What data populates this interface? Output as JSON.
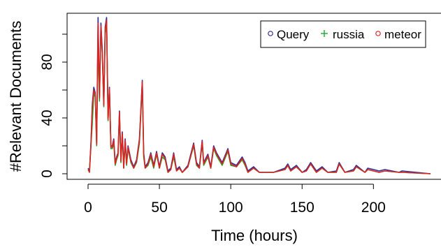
{
  "chart_data": {
    "type": "line",
    "title": "",
    "xlabel": "Time (hours)",
    "ylabel": "#Relevant Documents",
    "xlim": [
      0,
      240
    ],
    "ylim": [
      0,
      115
    ],
    "xticks": [
      0,
      50,
      100,
      150,
      200
    ],
    "yticks": [
      0,
      40,
      80
    ],
    "xtick_labels": [
      "0",
      "50",
      "100",
      "150",
      "200"
    ],
    "ytick_labels": [
      "0",
      "40",
      "80"
    ],
    "grid": false,
    "legend_position": "top-right",
    "legend": [
      "Query",
      "russia",
      "meteor"
    ],
    "series": [
      {
        "name": "Query",
        "color": "#2d2d9a",
        "marker": "circle",
        "x": [
          0,
          1,
          2,
          3,
          4,
          5,
          6,
          7,
          8,
          9,
          10,
          11,
          12,
          13,
          14,
          15,
          16,
          17,
          18,
          19,
          20,
          21,
          22,
          23,
          24,
          25,
          26,
          27,
          28,
          30,
          32,
          34,
          36,
          38,
          39,
          40,
          42,
          44,
          46,
          48,
          50,
          52,
          54,
          56,
          58,
          60,
          62,
          64,
          66,
          70,
          74,
          76,
          78,
          80,
          81,
          82,
          84,
          86,
          88,
          90,
          94,
          98,
          100,
          104,
          108,
          110,
          112,
          116,
          120,
          130,
          138,
          140,
          142,
          146,
          150,
          153,
          156,
          160,
          164,
          168,
          174,
          176,
          180,
          186,
          188,
          194,
          196,
          204,
          208,
          218,
          220,
          240
        ],
        "values": [
          4,
          2,
          22,
          50,
          62,
          58,
          22,
          112,
          55,
          108,
          88,
          50,
          105,
          112,
          40,
          62,
          20,
          20,
          25,
          8,
          12,
          15,
          45,
          10,
          30,
          5,
          25,
          8,
          20,
          10,
          5,
          10,
          25,
          67,
          15,
          5,
          8,
          15,
          6,
          16,
          5,
          15,
          12,
          2,
          4,
          15,
          3,
          5,
          1,
          6,
          22,
          8,
          5,
          24,
          8,
          10,
          14,
          5,
          20,
          15,
          8,
          18,
          8,
          6,
          12,
          8,
          2,
          5,
          1,
          1,
          4,
          7,
          3,
          6,
          1,
          3,
          8,
          2,
          5,
          1,
          2,
          8,
          1,
          3,
          6,
          1,
          4,
          2,
          3,
          1,
          2,
          0
        ]
      },
      {
        "name": "russia",
        "color": "#22aa22",
        "marker": "plus",
        "x": [
          0,
          1,
          2,
          3,
          4,
          5,
          6,
          7,
          8,
          9,
          10,
          11,
          12,
          13,
          14,
          15,
          16,
          17,
          18,
          19,
          20,
          21,
          22,
          23,
          24,
          25,
          26,
          27,
          28,
          30,
          32,
          34,
          36,
          38,
          39,
          40,
          42,
          44,
          46,
          48,
          50,
          52,
          54,
          56,
          58,
          60,
          62,
          64,
          66,
          70,
          74,
          76,
          78,
          80,
          81,
          82,
          84,
          86,
          88,
          90,
          94,
          98,
          100,
          104,
          108,
          110,
          112,
          116,
          120,
          130,
          138,
          140,
          142,
          146,
          150,
          153,
          156,
          160,
          164,
          168,
          174,
          176,
          180,
          186,
          188,
          194,
          196,
          204,
          208,
          218,
          220,
          240
        ],
        "values": [
          3,
          2,
          20,
          36,
          58,
          55,
          20,
          100,
          52,
          104,
          85,
          48,
          100,
          108,
          38,
          60,
          18,
          18,
          22,
          6,
          10,
          13,
          42,
          8,
          28,
          4,
          22,
          6,
          18,
          8,
          4,
          8,
          22,
          64,
          12,
          4,
          6,
          12,
          4,
          14,
          4,
          12,
          10,
          1,
          3,
          12,
          2,
          4,
          1,
          5,
          20,
          6,
          4,
          22,
          6,
          8,
          12,
          4,
          18,
          13,
          6,
          16,
          6,
          5,
          10,
          6,
          1,
          4,
          1,
          1,
          3,
          6,
          2,
          5,
          1,
          2,
          7,
          1,
          4,
          1,
          1,
          7,
          1,
          2,
          5,
          1,
          3,
          1,
          2,
          1,
          1,
          0
        ]
      },
      {
        "name": "meteor",
        "color": "#dd2222",
        "marker": "circle",
        "x": [
          0,
          1,
          2,
          3,
          4,
          5,
          6,
          7,
          8,
          9,
          10,
          11,
          12,
          13,
          14,
          15,
          16,
          17,
          18,
          19,
          20,
          21,
          22,
          23,
          24,
          25,
          26,
          27,
          28,
          30,
          32,
          34,
          36,
          38,
          39,
          40,
          42,
          44,
          46,
          48,
          50,
          52,
          54,
          56,
          58,
          60,
          62,
          64,
          66,
          70,
          74,
          76,
          78,
          80,
          81,
          82,
          84,
          86,
          88,
          90,
          94,
          98,
          100,
          104,
          108,
          110,
          112,
          116,
          120,
          130,
          138,
          140,
          142,
          146,
          150,
          153,
          156,
          160,
          164,
          168,
          174,
          176,
          180,
          186,
          188,
          194,
          196,
          204,
          208,
          218,
          220,
          240
        ],
        "values": [
          3,
          1,
          20,
          48,
          60,
          57,
          21,
          108,
          54,
          106,
          86,
          49,
          103,
          110,
          39,
          61,
          19,
          19,
          24,
          7,
          11,
          14,
          44,
          9,
          29,
          4,
          24,
          7,
          19,
          9,
          4,
          9,
          24,
          66,
          14,
          4,
          7,
          14,
          5,
          15,
          4,
          14,
          11,
          1,
          3,
          14,
          2,
          4,
          1,
          5,
          21,
          7,
          4,
          23,
          7,
          9,
          13,
          4,
          19,
          14,
          7,
          17,
          7,
          5,
          11,
          7,
          1,
          4,
          1,
          1,
          3,
          6,
          2,
          5,
          1,
          2,
          7,
          1,
          4,
          1,
          1,
          7,
          1,
          2,
          5,
          1,
          3,
          1,
          2,
          1,
          1,
          0
        ]
      }
    ]
  }
}
